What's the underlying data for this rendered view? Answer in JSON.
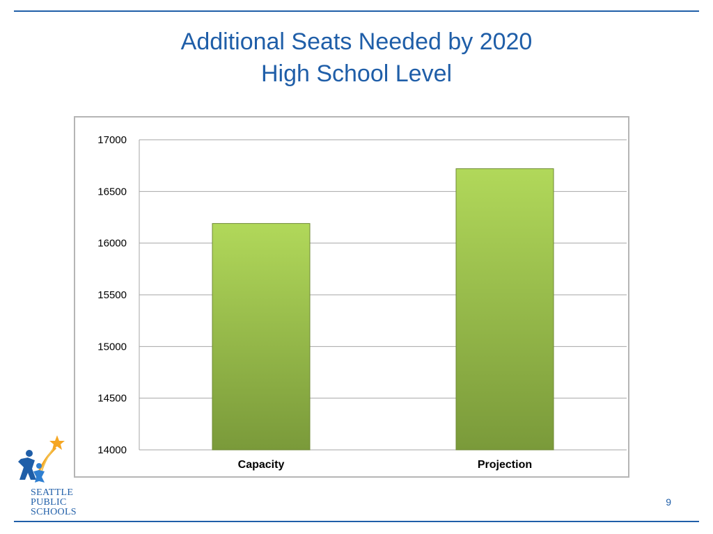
{
  "slide": {
    "title_line1": "Additional Seats Needed by 2020",
    "title_line2": "High School Level",
    "page_number": "9"
  },
  "logo": {
    "lines": [
      "SEATTLE",
      "PUBLIC",
      "SCHOOLS"
    ],
    "icon": "star-children-icon"
  },
  "colors": {
    "accent": "#1f5ea8",
    "bar_light": "#b1d85a",
    "bar_dark": "#7a9a3a",
    "grid": "#a6a6a6"
  },
  "chart_data": {
    "type": "bar",
    "categories": [
      "Capacity",
      "Projection"
    ],
    "values": [
      16190,
      16720
    ],
    "ylim": [
      14000,
      17000
    ],
    "yticks": [
      14000,
      14500,
      15000,
      15500,
      16000,
      16500,
      17000
    ],
    "ytick_labels": [
      "14000",
      "14500",
      "15000",
      "15500",
      "16000",
      "16500",
      "17000"
    ],
    "grid": true,
    "legend": "none"
  }
}
